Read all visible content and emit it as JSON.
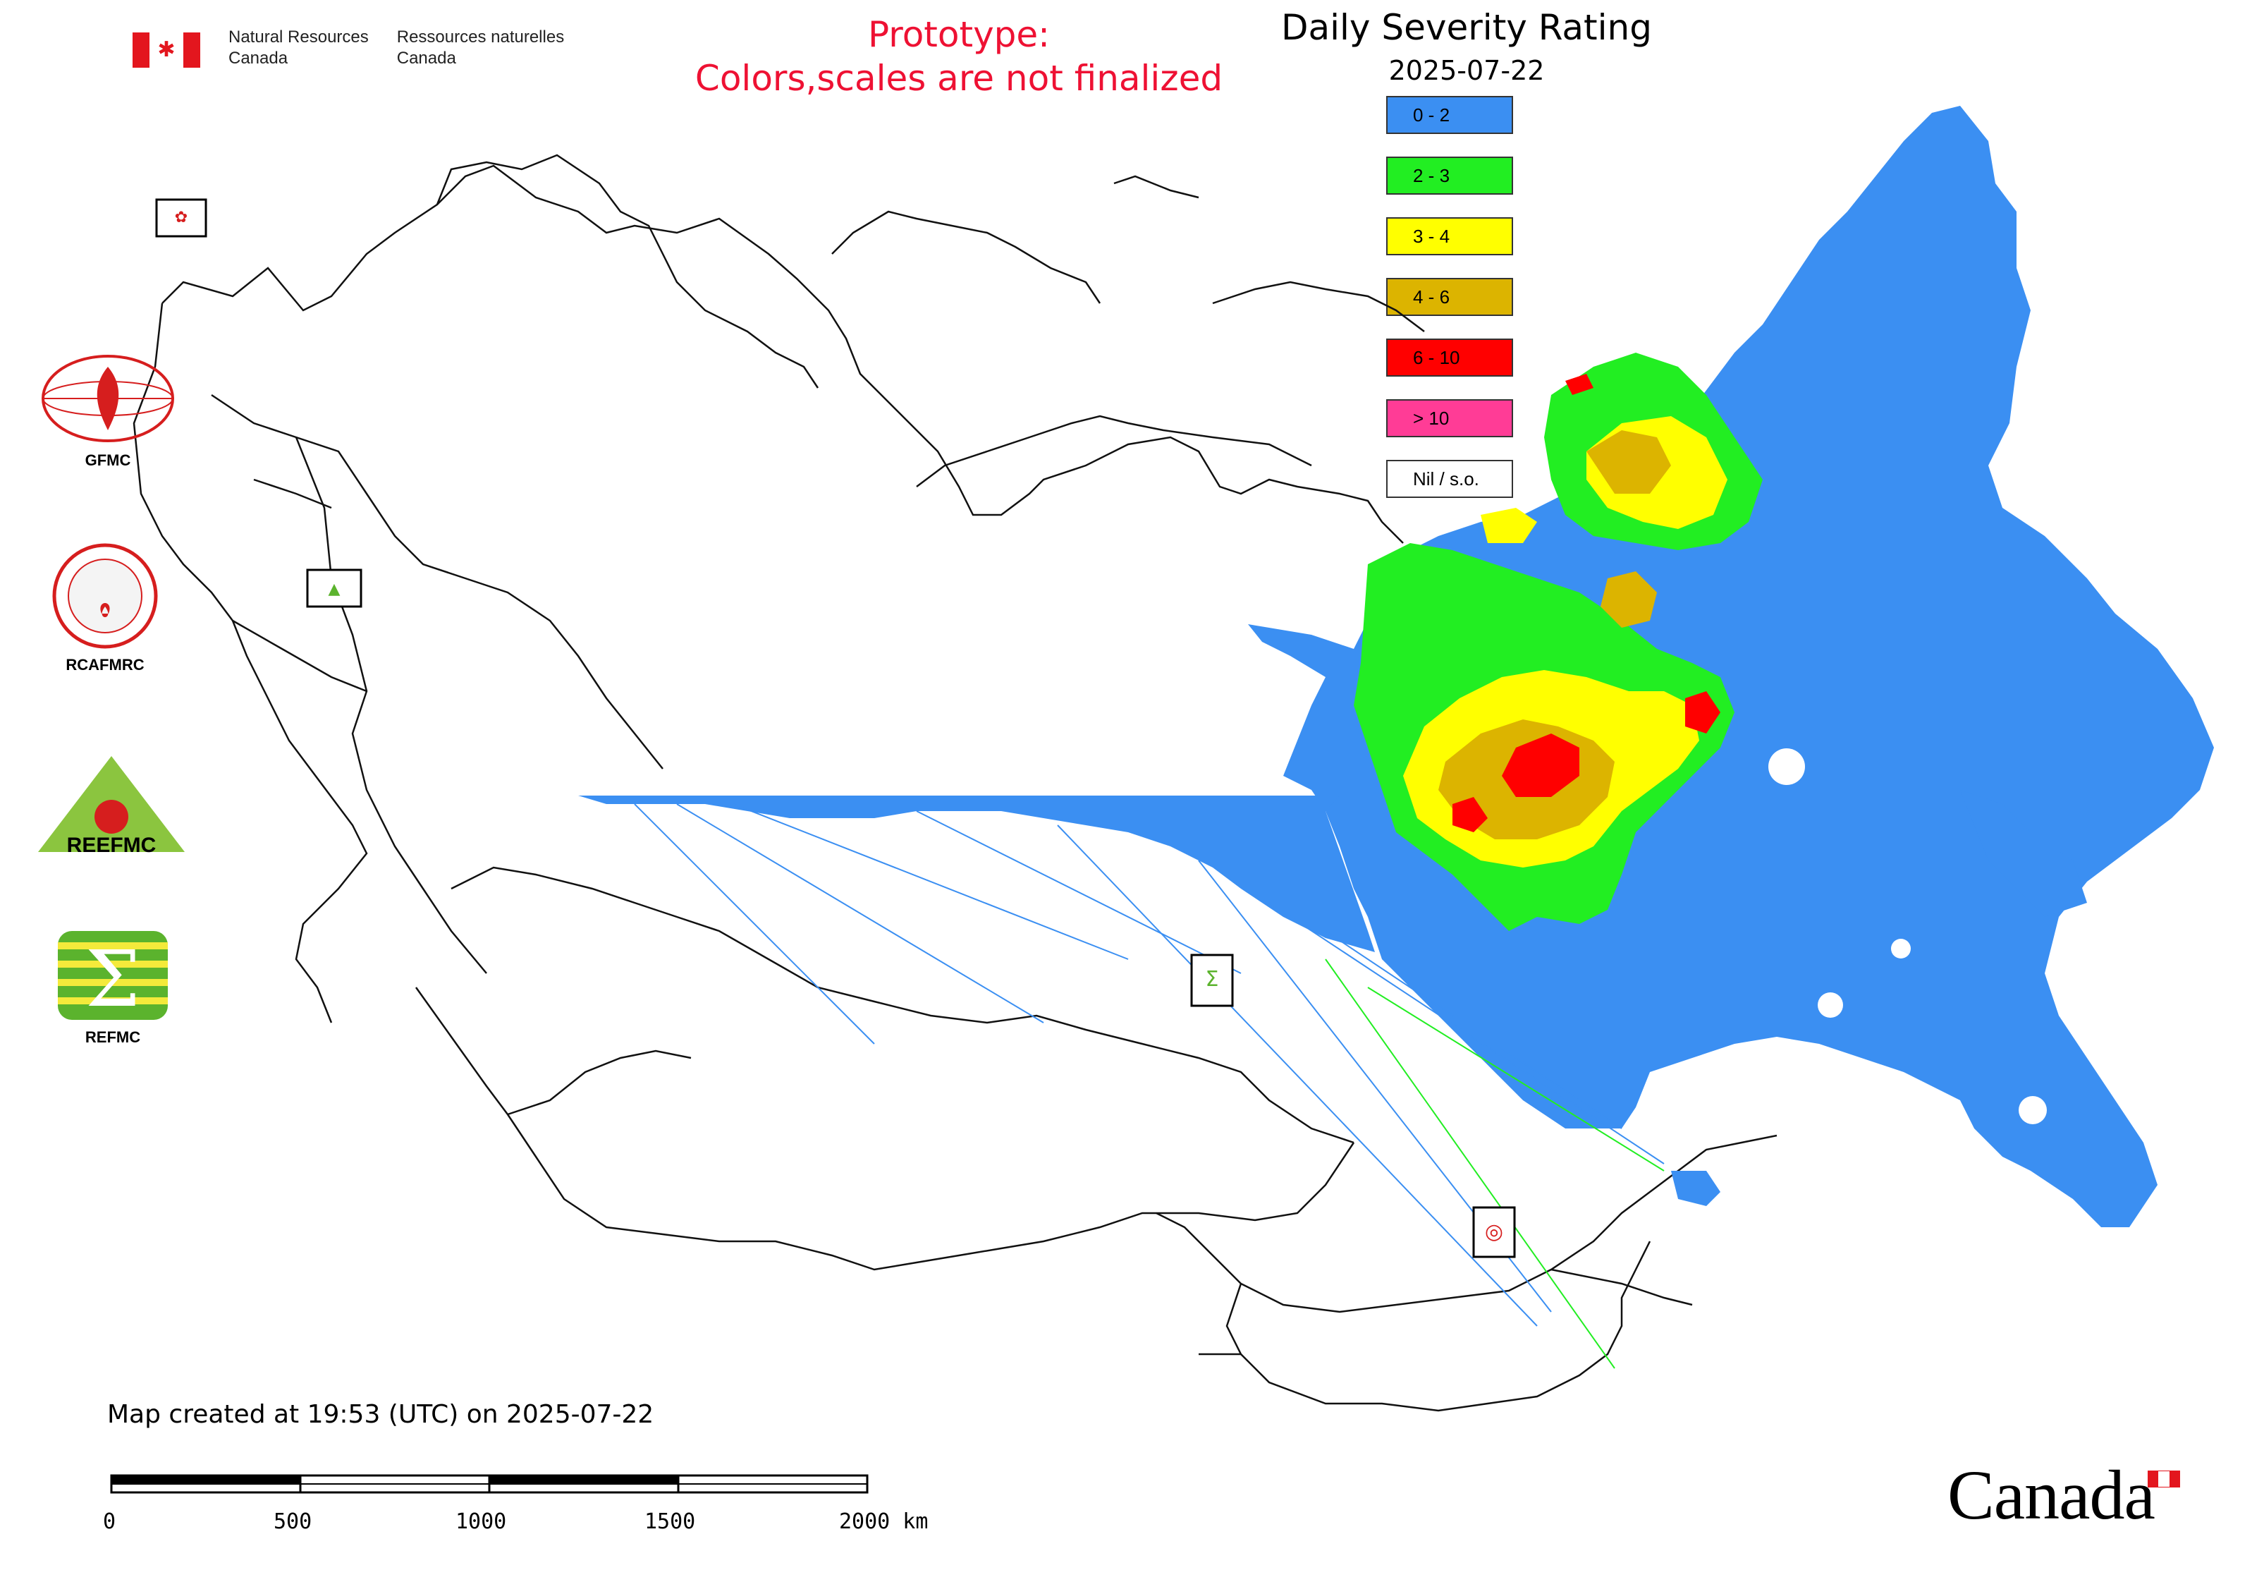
{
  "header": {
    "org_en_line1": "Natural Resources",
    "org_en_line2": "Canada",
    "org_fr_line1": "Ressources naturelles",
    "org_fr_line2": "Canada",
    "prototype_line1": "Prototype:",
    "prototype_line2": "Colors,scales are not finalized",
    "map_title": "Daily Severity Rating",
    "map_date": "2025-07-22"
  },
  "legend": {
    "items": [
      {
        "label": "0 - 2",
        "color": "#3b8ff2"
      },
      {
        "label": "2 - 3",
        "color": "#22ee22"
      },
      {
        "label": "3 - 4",
        "color": "#ffff00"
      },
      {
        "label": "4 - 6",
        "color": "#dcb400"
      },
      {
        "label": "6 - 10",
        "color": "#ff0000"
      },
      {
        "label": "> 10",
        "color": "#ff3c96"
      },
      {
        "label": "Nil / s.o.",
        "color": "#ffffff"
      }
    ]
  },
  "logos": {
    "gfmc": "GFMC",
    "rcafmrc": "RCAFMRC",
    "reefmc": "REEFMC",
    "refmc": "REFMC",
    "reefmc_mark_text": "REEFMC"
  },
  "footer": {
    "created_text": "Map created at 19:53 (UTC) on 2025-07-22",
    "scale_labels": [
      "0",
      "500",
      "1000",
      "1500",
      "2000 km"
    ],
    "wordmark": "Canada"
  },
  "colors": {
    "warning_text": "#ee1133",
    "boundary": "#111111",
    "flag_red": "#e3161e"
  }
}
